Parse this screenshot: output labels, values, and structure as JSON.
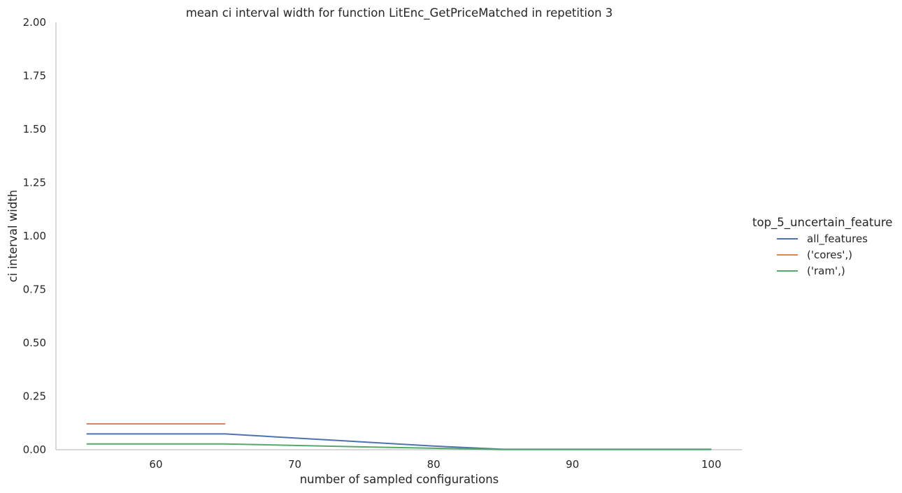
{
  "chart_data": {
    "type": "line",
    "title": "mean ci interval width for function LitEnc_GetPriceMatched in repetition 3",
    "xlabel": "number of sampled configurations",
    "ylabel": "ci interval width",
    "xlim": [
      52.8,
      102.2
    ],
    "ylim": [
      0,
      2
    ],
    "xticks": [
      60,
      70,
      80,
      90,
      100
    ],
    "yticks": [
      "0.00",
      "0.25",
      "0.50",
      "0.75",
      "1.00",
      "1.25",
      "1.50",
      "1.75",
      "2.00"
    ],
    "grid": false,
    "legend": {
      "title": "top_5_uncertain_feature",
      "placement": "right"
    },
    "series": [
      {
        "name": "all_features",
        "color": "#4c72b0",
        "x": [
          55,
          60,
          65,
          70,
          75,
          80,
          85,
          90,
          95,
          100
        ],
        "y": [
          0.074,
          0.074,
          0.074,
          0.055,
          0.036,
          0.017,
          0.002,
          0.002,
          0.002,
          0.002
        ]
      },
      {
        "name": "('cores',)",
        "color": "#dd8452",
        "x": [
          55,
          60,
          65
        ],
        "y": [
          0.121,
          0.121,
          0.121
        ]
      },
      {
        "name": "('ram',)",
        "color": "#55a868",
        "x": [
          55,
          60,
          65,
          70,
          75,
          80,
          85,
          90,
          95,
          100
        ],
        "y": [
          0.027,
          0.027,
          0.027,
          0.02,
          0.013,
          0.007,
          0.001,
          0.001,
          0.001,
          0.001
        ]
      }
    ]
  }
}
